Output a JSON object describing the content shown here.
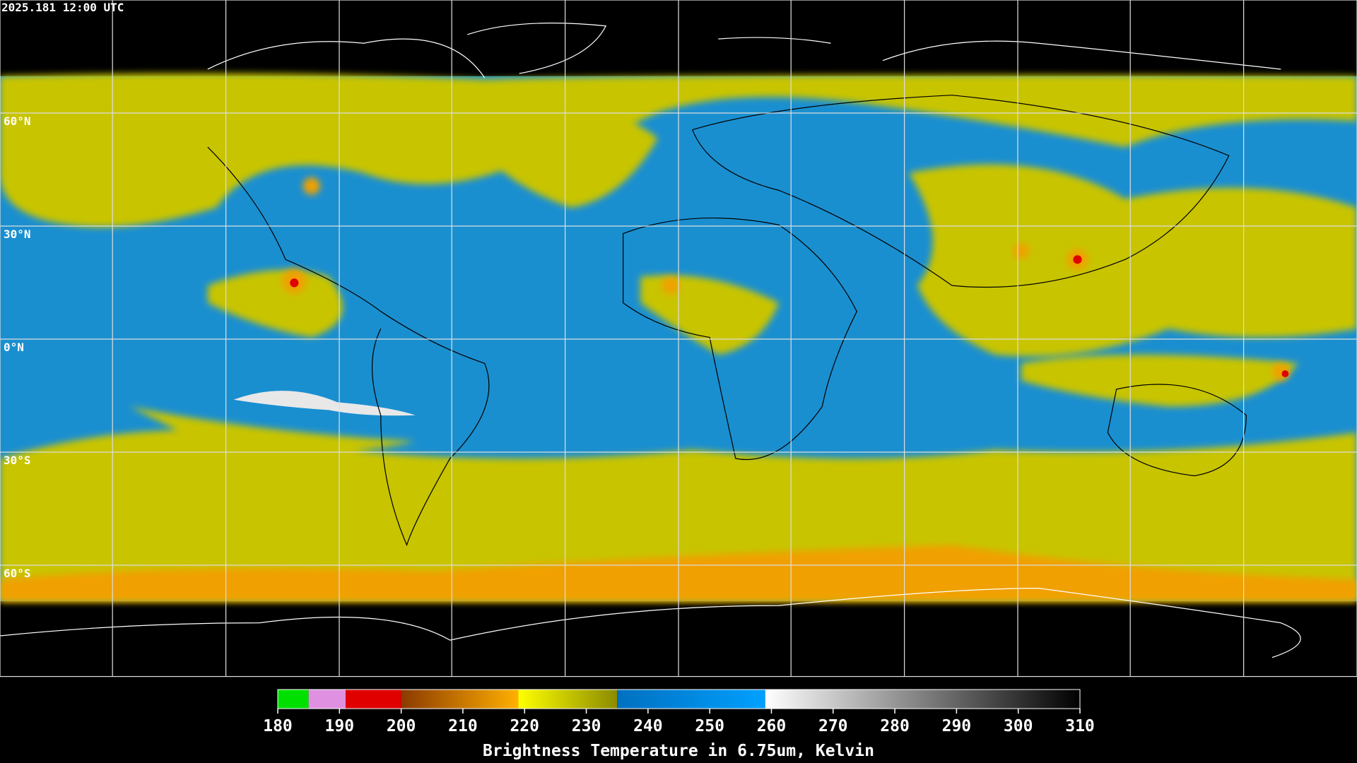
{
  "timestamp": "2025.181 12:00 UTC",
  "map": {
    "lat_range": [
      -90,
      90
    ],
    "lat_ticks": [
      {
        "value": 60,
        "label": "60°N"
      },
      {
        "value": 30,
        "label": "30°N"
      },
      {
        "value": 0,
        "label": "0°N"
      },
      {
        "value": -30,
        "label": "30°S"
      },
      {
        "value": -60,
        "label": "60°S"
      }
    ]
  },
  "colorbar": {
    "range": [
      180,
      310
    ],
    "ticks": [
      180,
      190,
      200,
      210,
      220,
      230,
      240,
      250,
      260,
      270,
      280,
      290,
      300,
      310
    ],
    "label": "Brightness Temperature in 6.75um, Kelvin",
    "segments": [
      {
        "from": 180,
        "to": 185,
        "color_from": "#00e000",
        "color_to": "#00e000"
      },
      {
        "from": 185,
        "to": 191,
        "color_from": "#e090e0",
        "color_to": "#e090e0"
      },
      {
        "from": 191,
        "to": 200,
        "color_from": "#e00000",
        "color_to": "#e00000"
      },
      {
        "from": 200,
        "to": 219,
        "color_from": "#8b3a00",
        "color_to": "#ffb000"
      },
      {
        "from": 219,
        "to": 235,
        "color_from": "#ffff00",
        "color_to": "#8b8b00"
      },
      {
        "from": 235,
        "to": 259,
        "color_from": "#0070c0",
        "color_to": "#00a0ff"
      },
      {
        "from": 259,
        "to": 310,
        "color_from": "#ffffff",
        "color_to": "#000000"
      }
    ]
  }
}
